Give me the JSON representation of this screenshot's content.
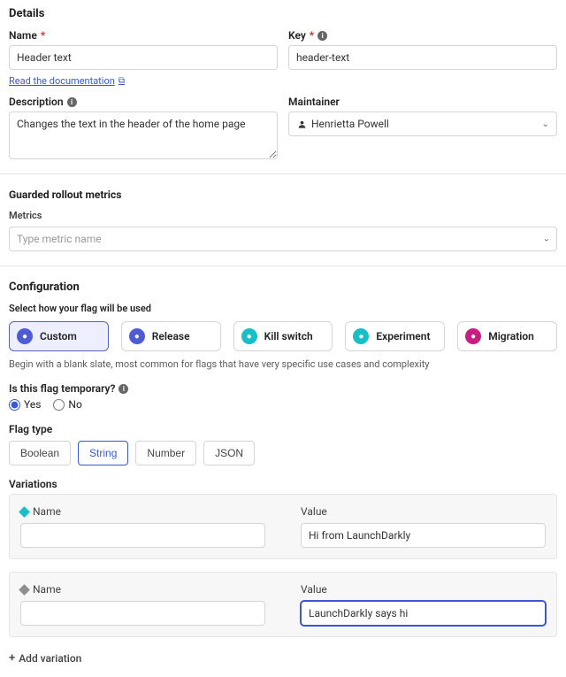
{
  "details": {
    "heading": "Details",
    "name_label": "Name",
    "name_value": "Header text",
    "doc_link": "Read the documentation",
    "key_label": "Key",
    "key_value": "header-text",
    "description_label": "Description",
    "description_value": "Changes the text in the header of the home page",
    "maintainer_label": "Maintainer",
    "maintainer_value": "Henrietta Powell"
  },
  "guarded": {
    "heading": "Guarded rollout metrics",
    "metrics_label": "Metrics",
    "metrics_placeholder": "Type metric name"
  },
  "configuration": {
    "heading": "Configuration",
    "usage_label": "Select how your flag will be used",
    "usage_options": [
      {
        "label": "Custom",
        "icon_color": "#4f5bd5",
        "selected": true
      },
      {
        "label": "Release",
        "icon_color": "#4f5bd5",
        "selected": false
      },
      {
        "label": "Kill switch",
        "icon_color": "#18bfc9",
        "selected": false
      },
      {
        "label": "Experiment",
        "icon_color": "#18bfc9",
        "selected": false
      },
      {
        "label": "Migration",
        "icon_color": "#c81e82",
        "selected": false
      }
    ],
    "usage_helper": "Begin with a blank slate, most common for flags that have very specific use cases and complexity",
    "temporary_label": "Is this flag temporary?",
    "temporary_yes": "Yes",
    "temporary_no": "No",
    "flag_type_label": "Flag type",
    "flag_types": [
      {
        "label": "Boolean",
        "selected": false
      },
      {
        "label": "String",
        "selected": true
      },
      {
        "label": "Number",
        "selected": false
      },
      {
        "label": "JSON",
        "selected": false
      }
    ],
    "variations_label": "Variations",
    "variation_name_label": "Name",
    "variation_value_label": "Value",
    "variations": [
      {
        "diamond_color": "#18bfc9",
        "name": "",
        "value": "Hi from LaunchDarkly",
        "value_focused": false
      },
      {
        "diamond_color": "#8f8f8f",
        "name": "",
        "value": "LaunchDarkly says hi",
        "value_focused": true
      }
    ],
    "add_variation": "Add variation"
  }
}
